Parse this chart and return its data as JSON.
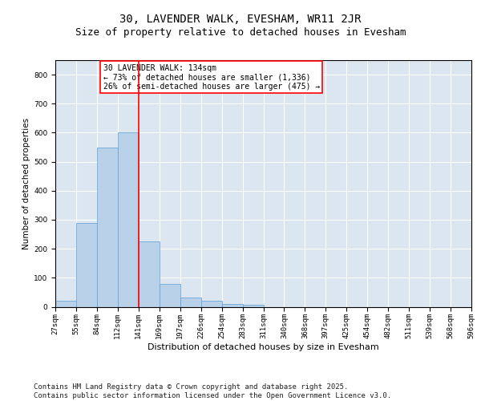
{
  "title_line1": "30, LAVENDER WALK, EVESHAM, WR11 2JR",
  "title_line2": "Size of property relative to detached houses in Evesham",
  "xlabel": "Distribution of detached houses by size in Evesham",
  "ylabel": "Number of detached properties",
  "bar_values": [
    20,
    290,
    550,
    600,
    225,
    80,
    32,
    22,
    10,
    8,
    0,
    0,
    0,
    0,
    0,
    0,
    0,
    0,
    0,
    0
  ],
  "categories": [
    "27sqm",
    "55sqm",
    "84sqm",
    "112sqm",
    "141sqm",
    "169sqm",
    "197sqm",
    "226sqm",
    "254sqm",
    "283sqm",
    "311sqm",
    "340sqm",
    "368sqm",
    "397sqm",
    "425sqm",
    "454sqm",
    "482sqm",
    "511sqm",
    "539sqm",
    "568sqm",
    "596sqm"
  ],
  "bar_color": "#b8d0e8",
  "bar_edge_color": "#5a9fd4",
  "vline_color": "red",
  "vline_x": 4.0,
  "annotation_box_text": "30 LAVENDER WALK: 134sqm\n← 73% of detached houses are smaller (1,336)\n26% of semi-detached houses are larger (475) →",
  "ylim": [
    0,
    850
  ],
  "yticks": [
    0,
    100,
    200,
    300,
    400,
    500,
    600,
    700,
    800
  ],
  "background_color": "#dce6f0",
  "grid_color": "#ffffff",
  "footer": "Contains HM Land Registry data © Crown copyright and database right 2025.\nContains public sector information licensed under the Open Government Licence v3.0.",
  "title_fontsize": 10,
  "subtitle_fontsize": 9,
  "annotation_fontsize": 7,
  "footer_fontsize": 6.5,
  "xlabel_fontsize": 8,
  "ylabel_fontsize": 7.5,
  "tick_fontsize": 6.5
}
